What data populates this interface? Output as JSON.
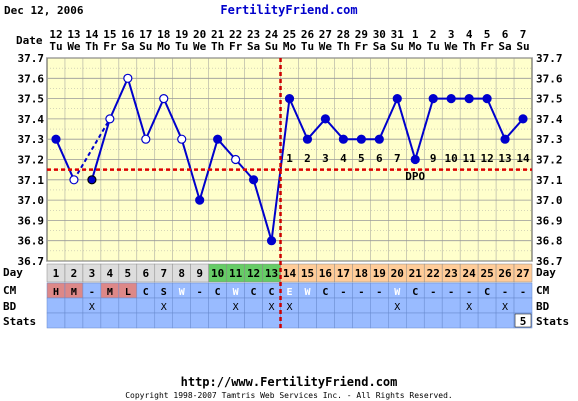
{
  "header": {
    "date": "Dec 12, 2006",
    "site": "FertilityFriend.com"
  },
  "footer": {
    "url": "http://www.FertilityFriend.com",
    "copyright": "Copyright 1998-2007 Tamtris Web Services Inc. - All Rights Reserved."
  },
  "row_labels": {
    "date": "Date",
    "day": "Day",
    "cm": "CM",
    "bd": "BD",
    "stats": "Stats"
  },
  "colors": {
    "chart_bg": "#ffffcc",
    "grid": "#999999",
    "line": "#0000cc",
    "marker": "#0000cc",
    "coverline": "#dd0000",
    "ovulation": "#cc0000",
    "day_normal": "#dddddd",
    "day_fertile": "#66cc66",
    "day_luteal": "#ffcc99",
    "cm_menstrual": "#dd8888",
    "cm_row": "#99bbff",
    "bd_row": "#99bbff",
    "stats_row": "#99bbff"
  },
  "chart_data": {
    "type": "line",
    "ylim": [
      36.7,
      37.7
    ],
    "yticks": [
      "36.7",
      "36.8",
      "36.9",
      "37.0",
      "37.1",
      "37.2",
      "37.3",
      "37.4",
      "37.5",
      "37.6",
      "37.7"
    ],
    "dates": [
      "12",
      "13",
      "14",
      "15",
      "16",
      "17",
      "18",
      "19",
      "20",
      "21",
      "22",
      "23",
      "24",
      "25",
      "26",
      "27",
      "28",
      "29",
      "30",
      "31",
      "1",
      "2",
      "3",
      "4",
      "5",
      "6",
      "7"
    ],
    "weekdays": [
      "Tu",
      "We",
      "Th",
      "Fr",
      "Sa",
      "Su",
      "Mo",
      "Tu",
      "We",
      "Th",
      "Fr",
      "Sa",
      "Su",
      "Mo",
      "Tu",
      "We",
      "Th",
      "Fr",
      "Sa",
      "Su",
      "Mo",
      "Tu",
      "We",
      "Th",
      "Fr",
      "Sa",
      "Su"
    ],
    "cycle_days": [
      "1",
      "2",
      "3",
      "4",
      "5",
      "6",
      "7",
      "8",
      "9",
      "10",
      "11",
      "12",
      "13",
      "14",
      "15",
      "16",
      "17",
      "18",
      "19",
      "20",
      "21",
      "22",
      "23",
      "24",
      "25",
      "26",
      "27"
    ],
    "temps": [
      37.3,
      37.1,
      37.1,
      37.4,
      37.6,
      37.3,
      37.5,
      37.3,
      37.0,
      37.3,
      37.2,
      37.1,
      36.8,
      37.5,
      37.3,
      37.4,
      37.3,
      37.3,
      37.3,
      37.5,
      37.2,
      37.5,
      37.5,
      37.5,
      37.5,
      37.3,
      37.4
    ],
    "hollow": [
      false,
      true,
      false,
      true,
      true,
      true,
      true,
      true,
      false,
      false,
      true,
      false,
      false,
      false,
      false,
      false,
      false,
      false,
      false,
      false,
      false,
      false,
      false,
      false,
      false,
      false,
      false
    ],
    "dashed_segments": [
      [
        1,
        3
      ]
    ],
    "skip_segments": [
      [
        1,
        2
      ]
    ],
    "coverline": 37.15,
    "ovulation_day_index": 12,
    "dpo_labels": [
      "1",
      "2",
      "3",
      "4",
      "5",
      "6",
      "7",
      "DPO",
      "9",
      "10",
      "11",
      "12",
      "13",
      "14"
    ],
    "cm": [
      "H",
      "M",
      "-",
      "M",
      "L",
      "C",
      "S",
      "W",
      "-",
      "C",
      "W",
      "C",
      "C",
      "E",
      "W",
      "C",
      "-",
      "-",
      "-",
      "W",
      "C",
      "-",
      "-",
      "-",
      "C",
      "-",
      "-"
    ],
    "bd": [
      "",
      "",
      "X",
      "",
      "",
      "",
      "X",
      "",
      "",
      "",
      "X",
      "",
      "X",
      "X",
      "",
      "",
      "",
      "",
      "",
      "X",
      "",
      "",
      "",
      "X",
      "",
      "X",
      ""
    ],
    "stats": [
      "",
      "",
      "",
      "",
      "",
      "",
      "",
      "",
      "",
      "",
      "",
      "",
      "",
      "",
      "",
      "",
      "",
      "",
      "",
      "",
      "",
      "",
      "",
      "",
      "",
      "",
      "5"
    ]
  }
}
